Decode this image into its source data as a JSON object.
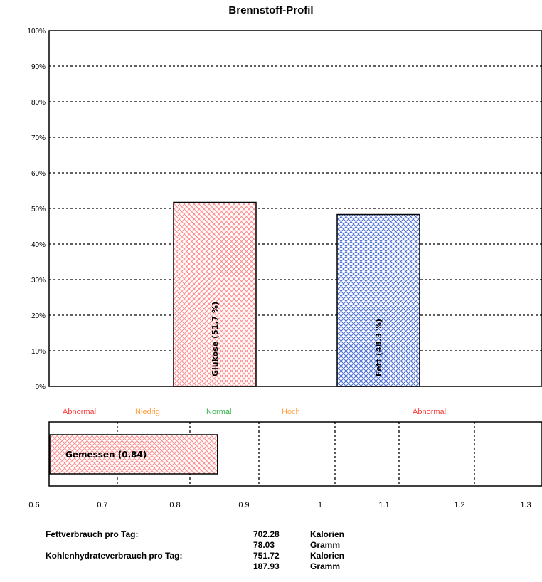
{
  "chart_data": [
    {
      "type": "bar",
      "title": "Brennstoff-Profil",
      "categories": [
        "Glukose",
        "Fett"
      ],
      "values": [
        51.7,
        48.3
      ],
      "bar_labels": [
        "Glukose (51.7 %)",
        "Fett (48.3 %)"
      ],
      "bar_colors": [
        "#ff8c8c",
        "#4a6fd8"
      ],
      "ylim": [
        0,
        100
      ],
      "yticks": [
        "0%",
        "10%",
        "20%",
        "30%",
        "40%",
        "50%",
        "60%",
        "70%",
        "80%",
        "90%",
        "100%"
      ],
      "grid": "dotted horizontal"
    },
    {
      "type": "bar",
      "orientation": "horizontal",
      "categories": [
        "Gemessen"
      ],
      "values": [
        0.84
      ],
      "bar_label": "Gemessen (0.84)",
      "xlim": [
        0.6,
        1.3
      ],
      "xticks": [
        "0.6",
        "0.7",
        "0.8",
        "0.9",
        "1",
        "1.1",
        "1.2",
        "1.3"
      ],
      "zones": [
        {
          "label": "Abnormal",
          "color": "#ff3b3b"
        },
        {
          "label": "Niedrig",
          "color": "#ffa040"
        },
        {
          "label": "Normal",
          "color": "#33b34a"
        },
        {
          "label": "Hoch",
          "color": "#ffa040"
        },
        {
          "label": "Abnormal",
          "color": "#ff3b3b"
        }
      ]
    }
  ],
  "stats": [
    {
      "label": "Fettverbrauch pro Tag:",
      "value": "702.28",
      "unit": "Kalorien"
    },
    {
      "label": "",
      "value": "78.03",
      "unit": "Gramm"
    },
    {
      "label": "Kohlenhydrateverbrauch pro Tag:",
      "value": "751.72",
      "unit": "Kalorien"
    },
    {
      "label": "",
      "value": "187.93",
      "unit": "Gramm"
    }
  ]
}
